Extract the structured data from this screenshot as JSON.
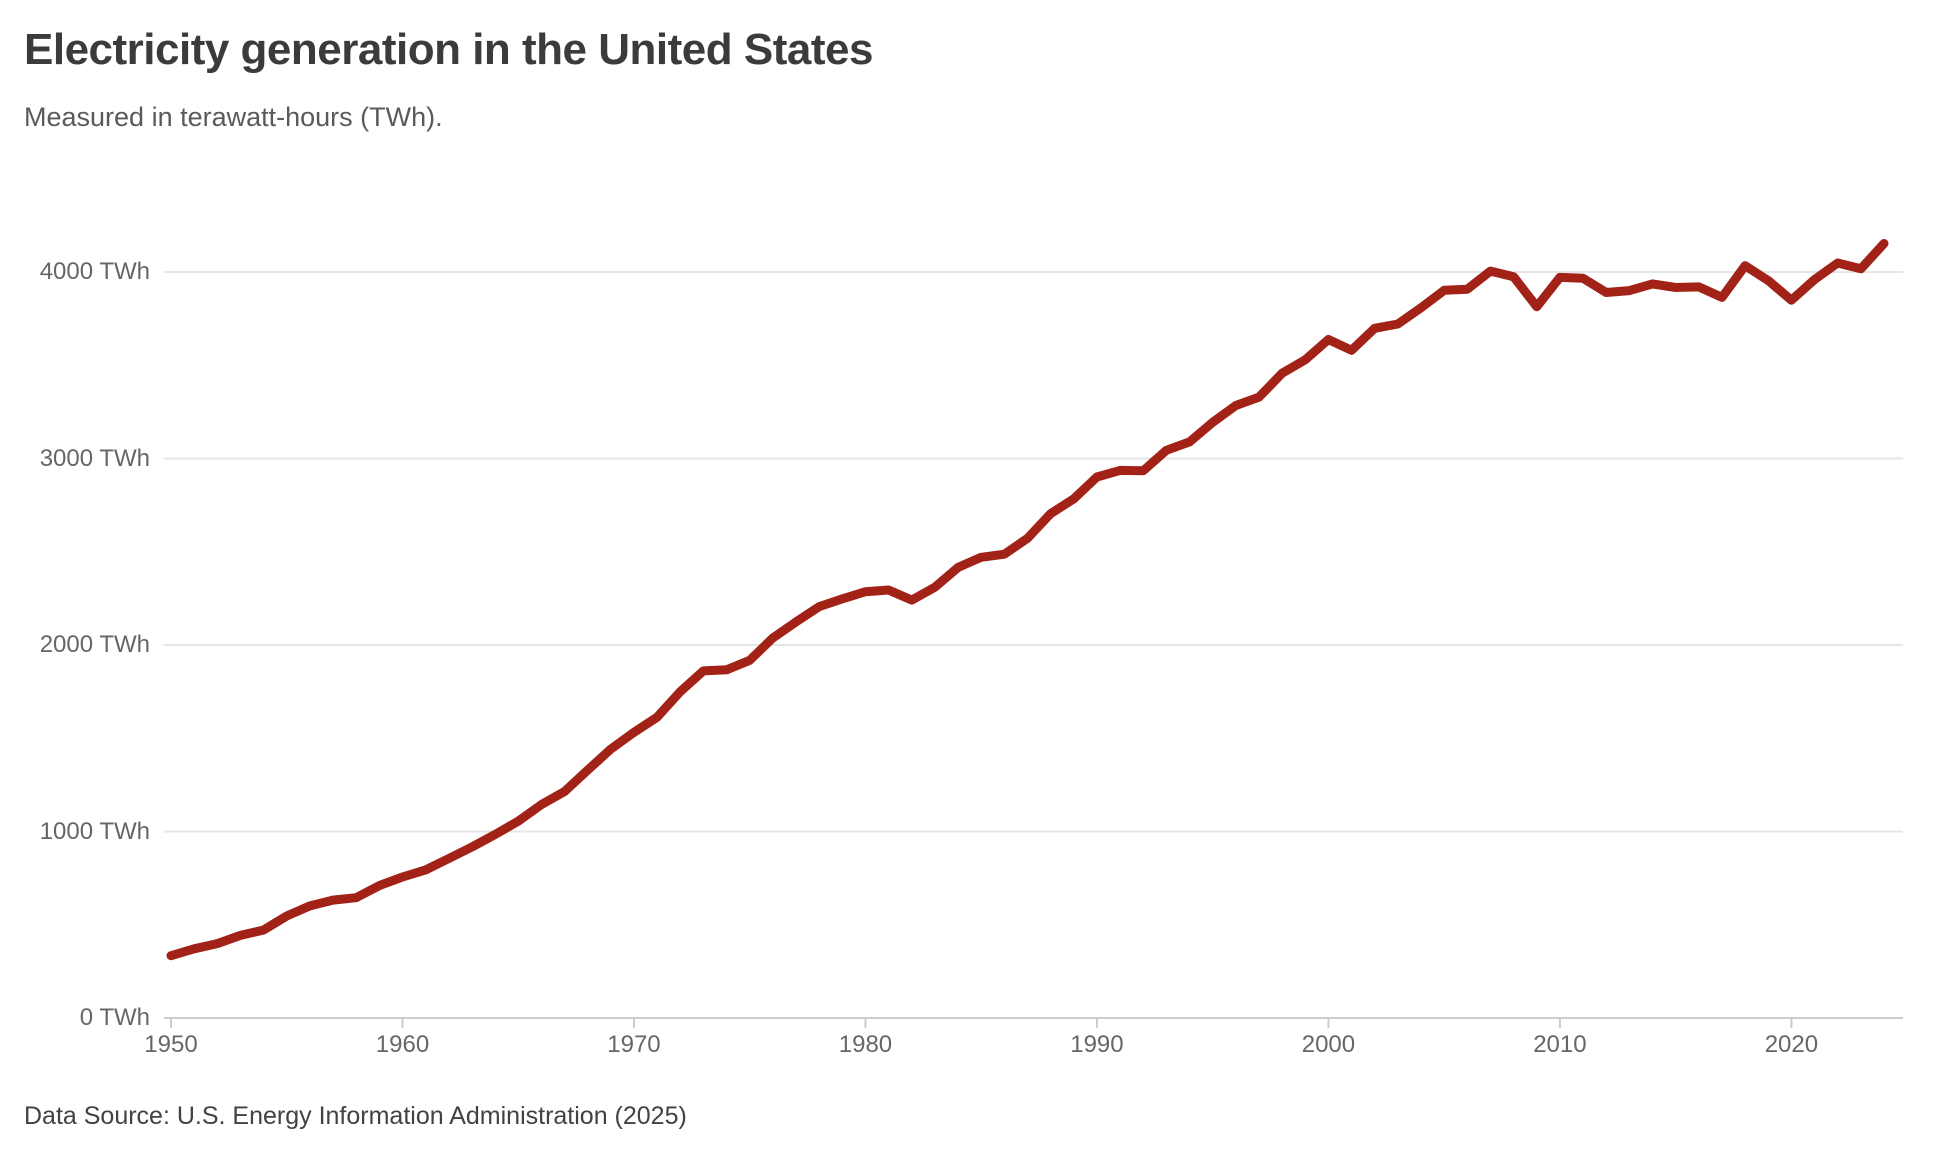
{
  "header": {
    "title": "Electricity generation in the United States",
    "subtitle": "Measured in terawatt-hours (TWh)."
  },
  "footer": {
    "source": "Data Source: U.S. Energy Information Administration (2025)"
  },
  "chart_data": {
    "type": "line",
    "title": "Electricity generation in the United States",
    "subtitle": "Measured in terawatt-hours (TWh).",
    "unit": "TWh",
    "line_color": "#a32218",
    "grid": "horizontal",
    "legend": "none",
    "xlim": [
      1950,
      2024
    ],
    "ylim": [
      0,
      4400
    ],
    "xticks": [
      1950,
      1960,
      1970,
      1980,
      1990,
      2000,
      2010,
      2020
    ],
    "yticks": [
      0,
      1000,
      2000,
      3000,
      4000
    ],
    "ytick_labels": [
      "0 TWh",
      "1000 TWh",
      "2000 TWh",
      "3000 TWh",
      "4000 TWh"
    ],
    "x": [
      1950,
      1951,
      1952,
      1953,
      1954,
      1955,
      1956,
      1957,
      1958,
      1959,
      1960,
      1961,
      1962,
      1963,
      1964,
      1965,
      1966,
      1967,
      1968,
      1969,
      1970,
      1971,
      1972,
      1973,
      1974,
      1975,
      1976,
      1977,
      1978,
      1979,
      1980,
      1981,
      1982,
      1983,
      1984,
      1985,
      1986,
      1987,
      1988,
      1989,
      1990,
      1991,
      1992,
      1993,
      1994,
      1995,
      1996,
      1997,
      1998,
      1999,
      2000,
      2001,
      2002,
      2003,
      2004,
      2005,
      2006,
      2007,
      2008,
      2009,
      2010,
      2011,
      2012,
      2013,
      2014,
      2015,
      2016,
      2017,
      2018,
      2019,
      2020,
      2021,
      2022,
      2023,
      2024
    ],
    "values": [
      334,
      371,
      399,
      443,
      472,
      547,
      601,
      632,
      645,
      710,
      756,
      794,
      855,
      917,
      984,
      1055,
      1144,
      1214,
      1329,
      1442,
      1532,
      1613,
      1750,
      1861,
      1867,
      1918,
      2038,
      2124,
      2206,
      2247,
      2286,
      2295,
      2241,
      2310,
      2416,
      2470,
      2487,
      2572,
      2704,
      2784,
      2901,
      2936,
      2934,
      3044,
      3089,
      3194,
      3284,
      3329,
      3457,
      3530,
      3638,
      3580,
      3698,
      3721,
      3808,
      3902,
      3908,
      4005,
      3974,
      3814,
      3971,
      3966,
      3890,
      3900,
      3936,
      3917,
      3920,
      3864,
      4034,
      3954,
      3849,
      3960,
      4048,
      4017,
      4153
    ]
  }
}
